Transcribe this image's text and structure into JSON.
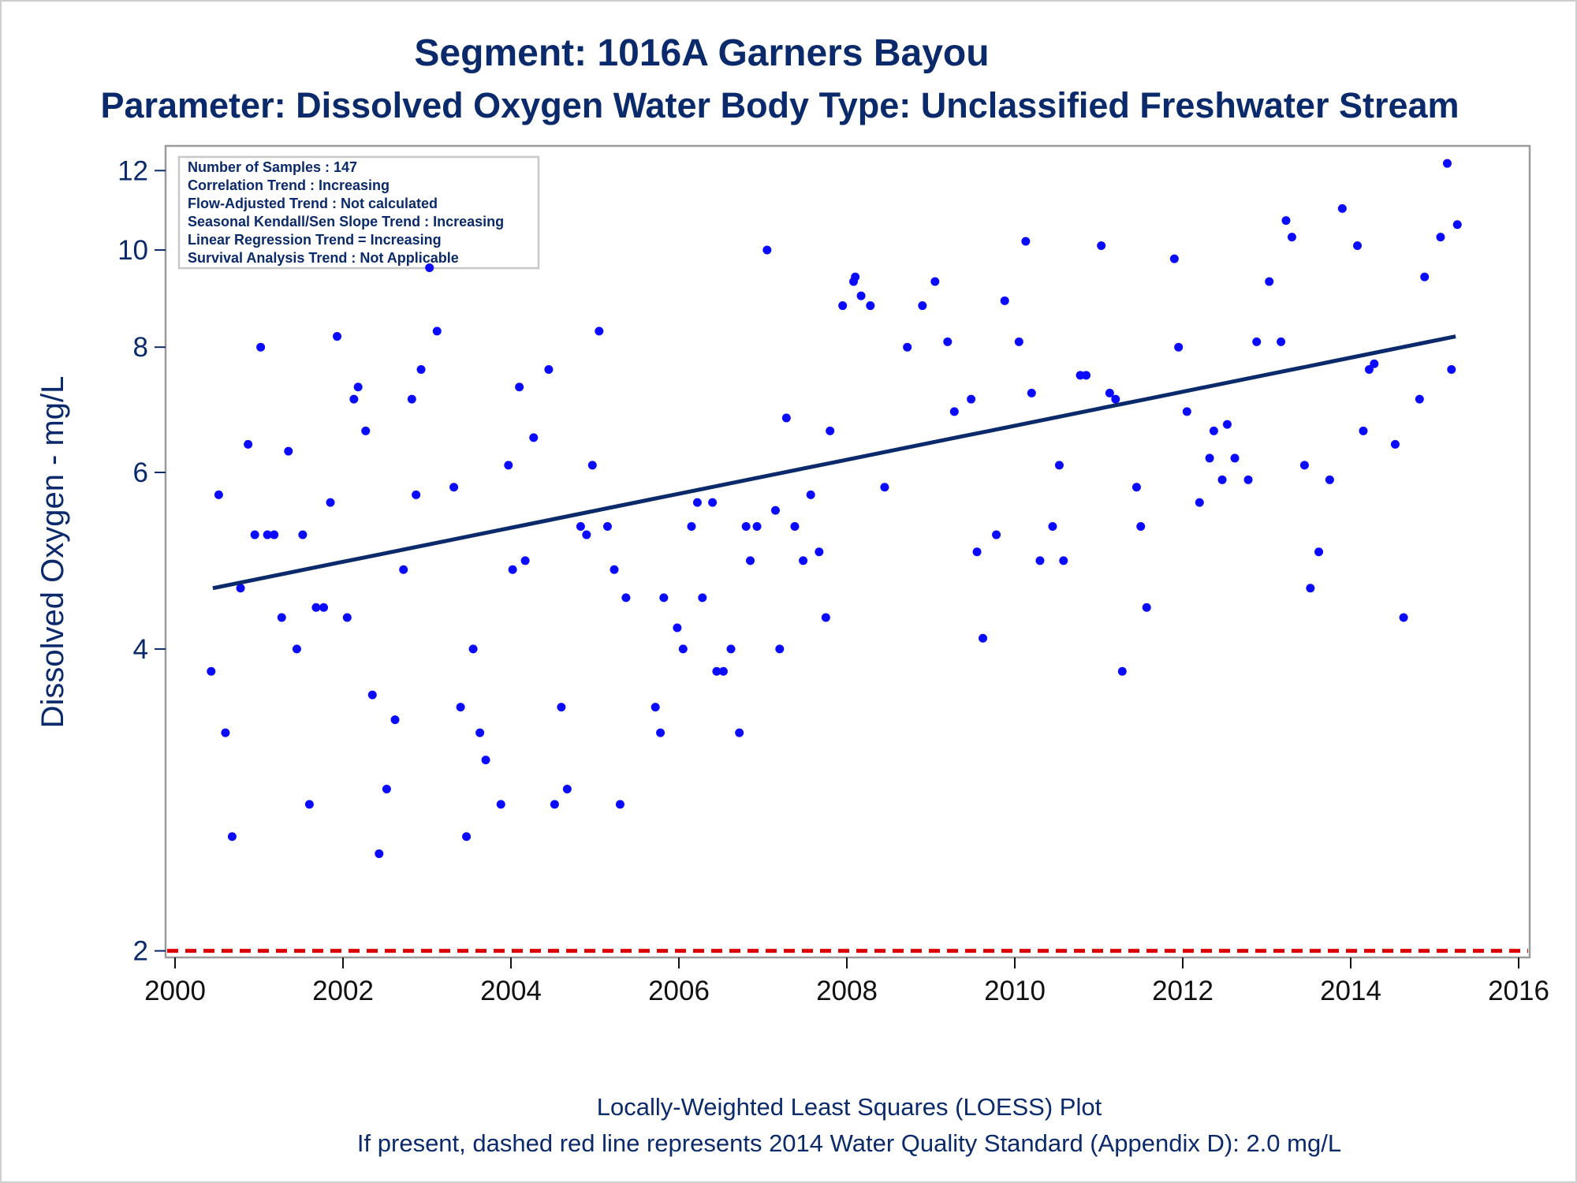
{
  "title_line1": "Segment: 1016A  Garners Bayou",
  "title_line2": "Parameter: Dissolved Oxygen   Water Body Type: Unclassified Freshwater Stream",
  "inset": [
    "Number of Samples : 147",
    "Correlation Trend : Increasing",
    "Flow-Adjusted Trend : Not calculated",
    "Seasonal Kendall/Sen Slope Trend : Increasing",
    "Linear Regression Trend = Increasing",
    "Survival Analysis Trend : Not Applicable"
  ],
  "footnote_line1": "Locally-Weighted Least Squares (LOESS) Plot",
  "footnote_line2": "If present, dashed red line represents 2014 Water Quality Standard (Appendix D): 2.0 mg/L",
  "colors": {
    "points": "#0a0aff",
    "trend": "#0b2a6b",
    "standard": "#dd0000",
    "text": "#0b2a6b"
  },
  "chart_data": {
    "type": "scatter",
    "title": "Segment: 1016A  Garners Bayou",
    "subtitle": "Parameter: Dissolved Oxygen   Water Body Type: Unclassified Freshwater Stream",
    "xlabel": "",
    "ylabel": "Dissolved Oxygen - mg/L",
    "y_scale": "log",
    "xlim": [
      2000,
      2016.2
    ],
    "ylim": [
      1.97,
      12.7
    ],
    "x_ticks": [
      2000,
      2002,
      2004,
      2006,
      2008,
      2010,
      2012,
      2014,
      2016
    ],
    "y_ticks": [
      2,
      4,
      6,
      8,
      10,
      12
    ],
    "grid": false,
    "standard_line": {
      "value": 2.0,
      "style": "dashed"
    },
    "trend_line": {
      "x": [
        2000.45,
        2015.25
      ],
      "y": [
        4.6,
        8.2
      ]
    },
    "points": [
      [
        2000.43,
        3.8
      ],
      [
        2000.52,
        5.7
      ],
      [
        2000.6,
        3.3
      ],
      [
        2000.68,
        2.6
      ],
      [
        2000.78,
        4.6
      ],
      [
        2000.87,
        6.4
      ],
      [
        2000.95,
        5.2
      ],
      [
        2001.02,
        8.0
      ],
      [
        2001.1,
        5.2
      ],
      [
        2001.18,
        5.2
      ],
      [
        2001.27,
        4.3
      ],
      [
        2001.35,
        6.3
      ],
      [
        2001.45,
        4.0
      ],
      [
        2001.52,
        5.2
      ],
      [
        2001.6,
        2.8
      ],
      [
        2001.68,
        4.4
      ],
      [
        2001.77,
        4.4
      ],
      [
        2001.85,
        5.6
      ],
      [
        2001.93,
        8.2
      ],
      [
        2002.05,
        4.3
      ],
      [
        2002.13,
        7.1
      ],
      [
        2002.18,
        7.3
      ],
      [
        2002.27,
        6.6
      ],
      [
        2002.35,
        3.6
      ],
      [
        2002.43,
        2.5
      ],
      [
        2002.52,
        2.9
      ],
      [
        2002.62,
        3.4
      ],
      [
        2002.72,
        4.8
      ],
      [
        2002.82,
        7.1
      ],
      [
        2002.87,
        5.7
      ],
      [
        2002.93,
        7.6
      ],
      [
        2003.03,
        9.6
      ],
      [
        2003.12,
        8.3
      ],
      [
        2003.32,
        5.8
      ],
      [
        2003.4,
        3.5
      ],
      [
        2003.47,
        2.6
      ],
      [
        2003.55,
        4.0
      ],
      [
        2003.63,
        3.3
      ],
      [
        2003.7,
        3.1
      ],
      [
        2003.88,
        2.8
      ],
      [
        2003.97,
        6.1
      ],
      [
        2004.02,
        4.8
      ],
      [
        2004.1,
        7.3
      ],
      [
        2004.17,
        4.9
      ],
      [
        2004.27,
        6.5
      ],
      [
        2004.45,
        7.6
      ],
      [
        2004.52,
        2.8
      ],
      [
        2004.6,
        3.5
      ],
      [
        2004.67,
        2.9
      ],
      [
        2004.83,
        5.3
      ],
      [
        2004.9,
        5.2
      ],
      [
        2004.97,
        6.1
      ],
      [
        2005.05,
        8.3
      ],
      [
        2005.15,
        5.3
      ],
      [
        2005.23,
        4.8
      ],
      [
        2005.3,
        2.8
      ],
      [
        2005.37,
        4.5
      ],
      [
        2005.72,
        3.5
      ],
      [
        2005.78,
        3.3
      ],
      [
        2005.82,
        4.5
      ],
      [
        2005.98,
        4.2
      ],
      [
        2006.05,
        4.0
      ],
      [
        2006.15,
        5.3
      ],
      [
        2006.22,
        5.6
      ],
      [
        2006.28,
        4.5
      ],
      [
        2006.4,
        5.6
      ],
      [
        2006.45,
        3.8
      ],
      [
        2006.53,
        3.8
      ],
      [
        2006.62,
        4.0
      ],
      [
        2006.72,
        3.3
      ],
      [
        2006.8,
        5.3
      ],
      [
        2006.85,
        4.9
      ],
      [
        2006.93,
        5.3
      ],
      [
        2007.05,
        10.0
      ],
      [
        2007.15,
        5.5
      ],
      [
        2007.2,
        4.0
      ],
      [
        2007.28,
        6.8
      ],
      [
        2007.38,
        5.3
      ],
      [
        2007.48,
        4.9
      ],
      [
        2007.57,
        5.7
      ],
      [
        2007.67,
        5.0
      ],
      [
        2007.75,
        4.3
      ],
      [
        2007.8,
        6.6
      ],
      [
        2007.95,
        8.8
      ],
      [
        2008.08,
        9.3
      ],
      [
        2008.1,
        9.4
      ],
      [
        2008.17,
        9.0
      ],
      [
        2008.28,
        8.8
      ],
      [
        2008.45,
        5.8
      ],
      [
        2008.72,
        8.0
      ],
      [
        2008.9,
        8.8
      ],
      [
        2009.05,
        9.3
      ],
      [
        2009.2,
        8.1
      ],
      [
        2009.28,
        6.9
      ],
      [
        2009.48,
        7.1
      ],
      [
        2009.55,
        5.0
      ],
      [
        2009.62,
        4.1
      ],
      [
        2009.78,
        5.2
      ],
      [
        2009.88,
        8.9
      ],
      [
        2010.05,
        8.1
      ],
      [
        2010.13,
        10.2
      ],
      [
        2010.2,
        7.2
      ],
      [
        2010.3,
        4.9
      ],
      [
        2010.45,
        5.3
      ],
      [
        2010.53,
        6.1
      ],
      [
        2010.58,
        4.9
      ],
      [
        2010.78,
        7.5
      ],
      [
        2010.85,
        7.5
      ],
      [
        2011.03,
        10.1
      ],
      [
        2011.13,
        7.2
      ],
      [
        2011.2,
        7.1
      ],
      [
        2011.28,
        3.8
      ],
      [
        2011.45,
        5.8
      ],
      [
        2011.5,
        5.3
      ],
      [
        2011.57,
        4.4
      ],
      [
        2011.9,
        9.8
      ],
      [
        2011.95,
        8.0
      ],
      [
        2012.05,
        6.9
      ],
      [
        2012.2,
        5.6
      ],
      [
        2012.32,
        6.2
      ],
      [
        2012.37,
        6.6
      ],
      [
        2012.47,
        5.9
      ],
      [
        2012.53,
        6.7
      ],
      [
        2012.62,
        6.2
      ],
      [
        2012.78,
        5.9
      ],
      [
        2012.88,
        8.1
      ],
      [
        2013.03,
        9.3
      ],
      [
        2013.17,
        8.1
      ],
      [
        2013.23,
        10.7
      ],
      [
        2013.3,
        10.3
      ],
      [
        2013.45,
        6.1
      ],
      [
        2013.52,
        4.6
      ],
      [
        2013.62,
        5.0
      ],
      [
        2013.75,
        5.9
      ],
      [
        2013.9,
        11.0
      ],
      [
        2014.08,
        10.1
      ],
      [
        2014.15,
        6.6
      ],
      [
        2014.22,
        7.6
      ],
      [
        2014.28,
        7.7
      ],
      [
        2014.53,
        6.4
      ],
      [
        2014.63,
        4.3
      ],
      [
        2014.82,
        7.1
      ],
      [
        2014.88,
        9.4
      ],
      [
        2015.07,
        10.3
      ],
      [
        2015.15,
        12.2
      ],
      [
        2015.2,
        7.6
      ],
      [
        2015.27,
        10.6
      ]
    ]
  }
}
